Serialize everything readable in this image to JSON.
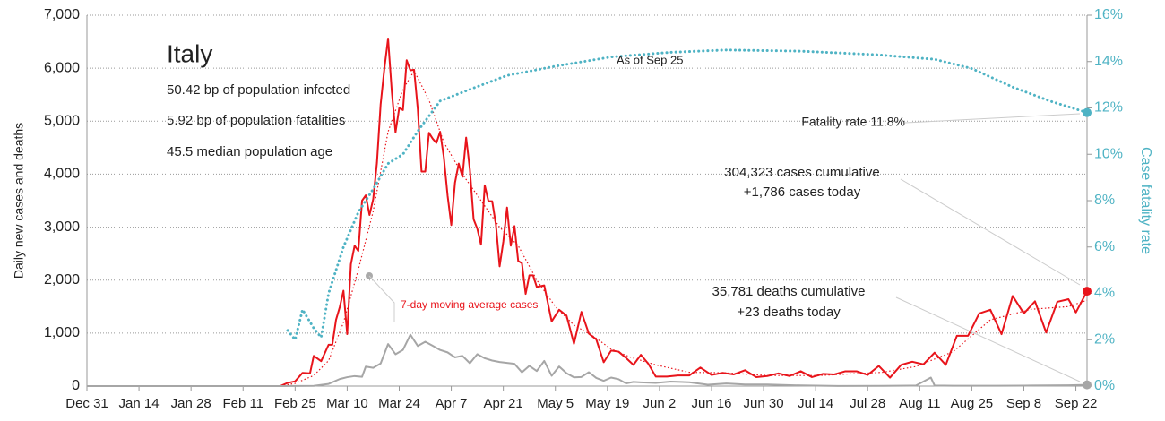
{
  "chart_data": {
    "type": "line",
    "title": "Italy",
    "subtitle_lines": [
      "50.42 bp of population infected",
      "5.92 bp of population fatalities",
      "45.5 median population age"
    ],
    "ylabel": "Daily new cases and deaths",
    "y2label": "Case fatality rate",
    "annotations": {
      "as_of": "As of Sep 25",
      "fatality": "Fatality rate 11.8%",
      "cases_cum": "304,323 cases cumulative",
      "cases_today": "+1,786 cases today",
      "deaths_cum": "35,781 deaths cumulative",
      "deaths_today": "+23 deaths today"
    },
    "xlim": [
      "Dec 31",
      "Sep 25"
    ],
    "xticks": [
      "Dec 31",
      "Jan 14",
      "Jan 28",
      "Feb 11",
      "Feb 25",
      "Mar 10",
      "Mar 24",
      "Apr 7",
      "Apr 21",
      "May 5",
      "May 19",
      "Jun 2",
      "Jun 16",
      "Jun 30",
      "Jul 14",
      "Jul 28",
      "Aug 11",
      "Aug 25",
      "Sep 8",
      "Sep 22"
    ],
    "ylim": [
      0,
      7000
    ],
    "yticks": [
      0,
      {
        "value": 1000,
        "label": "1,000"
      },
      {
        "value": 2000,
        "label": "2,000"
      },
      {
        "value": 3000,
        "label": "3,000"
      },
      {
        "value": 4000,
        "label": "4,000"
      },
      {
        "value": 5000,
        "label": "5,000"
      },
      {
        "value": 6000,
        "label": "6,000"
      },
      {
        "value": 7000,
        "label": "7,000"
      }
    ],
    "y2lim": [
      0,
      16
    ],
    "y2ticks": [
      {
        "value": 0,
        "label": "0%"
      },
      {
        "value": 2,
        "label": "2%"
      },
      {
        "value": 4,
        "label": "4%"
      },
      {
        "value": 6,
        "label": "6%"
      },
      {
        "value": 8,
        "label": "8%"
      },
      {
        "value": 10,
        "label": "10%"
      },
      {
        "value": 12,
        "label": "12%"
      },
      {
        "value": 14,
        "label": "14%"
      },
      {
        "value": 16,
        "label": "16%"
      }
    ],
    "grid": true,
    "series": [
      {
        "color": "#e8141b",
        "style": "solid",
        "endpoint": true,
        "x": [
          "Dec 31",
          "Feb 21",
          "Feb 23",
          "Feb 25",
          "Feb 27",
          "Feb 29",
          "Mar 1",
          "Mar 3",
          "Mar 5",
          "Mar 6",
          "Mar 7",
          "Mar 8",
          "Mar 9",
          "Mar 10",
          "Mar 11",
          "Mar 12",
          "Mar 13",
          "Mar 14",
          "Mar 15",
          "Mar 16",
          "Mar 17",
          "Mar 18",
          "Mar 19",
          "Mar 20",
          "Mar 21",
          "Mar 22",
          "Mar 23",
          "Mar 24",
          "Mar 25",
          "Mar 26",
          "Mar 27",
          "Mar 28",
          "Mar 29",
          "Mar 30",
          "Mar 31",
          "Apr 1",
          "Apr 2",
          "Apr 3",
          "Apr 4",
          "Apr 5",
          "Apr 6",
          "Apr 7",
          "Apr 8",
          "Apr 9",
          "Apr 10",
          "Apr 11",
          "Apr 12",
          "Apr 13",
          "Apr 14",
          "Apr 15",
          "Apr 16",
          "Apr 17",
          "Apr 18",
          "Apr 19",
          "Apr 20",
          "Apr 21",
          "Apr 22",
          "Apr 23",
          "Apr 24",
          "Apr 25",
          "Apr 26",
          "Apr 27",
          "Apr 28",
          "Apr 29",
          "Apr 30",
          "May 2",
          "May 4",
          "May 6",
          "May 8",
          "May 10",
          "May 12",
          "May 14",
          "May 16",
          "May 18",
          "May 20",
          "May 22",
          "May 24",
          "May 26",
          "May 28",
          "May 30",
          "Jun 1",
          "Jun 4",
          "Jun 7",
          "Jun 10",
          "Jun 13",
          "Jun 16",
          "Jun 19",
          "Jun 22",
          "Jun 25",
          "Jun 28",
          "Jul 1",
          "Jul 4",
          "Jul 7",
          "Jul 10",
          "Jul 13",
          "Jul 16",
          "Jul 19",
          "Jul 22",
          "Jul 25",
          "Jul 28",
          "Jul 31",
          "Aug 3",
          "Aug 6",
          "Aug 9",
          "Aug 12",
          "Aug 15",
          "Aug 18",
          "Aug 21",
          "Aug 24",
          "Aug 27",
          "Aug 30",
          "Sep 2",
          "Sep 5",
          "Sep 8",
          "Sep 11",
          "Sep 14",
          "Sep 17",
          "Sep 20",
          "Sep 22",
          "Sep 25"
        ],
        "values": [
          0,
          0,
          60,
          90,
          250,
          240,
          570,
          470,
          780,
          780,
          1250,
          1490,
          1800,
          980,
          2300,
          2650,
          2550,
          3500,
          3600,
          3230,
          3530,
          4210,
          5320,
          5990,
          6560,
          5560,
          4790,
          5250,
          5210,
          6150,
          5960,
          5970,
          5220,
          4050,
          4050,
          4780,
          4670,
          4590,
          4800,
          4320,
          3600,
          3040,
          3840,
          4200,
          3950,
          4690,
          4090,
          3150,
          2970,
          2670,
          3790,
          3490,
          3490,
          3050,
          2260,
          2730,
          3370,
          2650,
          3020,
          2360,
          2320,
          1740,
          2090,
          2090,
          1870,
          1900,
          1220,
          1440,
          1330,
          800,
          1400,
          990,
          880,
          450,
          670,
          650,
          530,
          400,
          590,
          420,
          180,
          180,
          200,
          200,
          350,
          210,
          250,
          220,
          300,
          170,
          190,
          240,
          190,
          280,
          170,
          230,
          220,
          280,
          280,
          210,
          380,
          160,
          400,
          460,
          410,
          630,
          400,
          950,
          950,
          1370,
          1440,
          980,
          1700,
          1370,
          1600,
          1010,
          1590,
          1640,
          1390,
          1790
        ]
      },
      {
        "name": "7-day moving average cases",
        "color": "#e8141b",
        "style": "dotted",
        "endpoint": false,
        "x": [
          "Feb 21",
          "Feb 25",
          "Mar 1",
          "Mar 5",
          "Mar 9",
          "Mar 13",
          "Mar 17",
          "Mar 21",
          "Mar 25",
          "Mar 28",
          "Apr 1",
          "Apr 5",
          "Apr 10",
          "Apr 15",
          "Apr 20",
          "Apr 25",
          "Apr 30",
          "May 5",
          "May 10",
          "May 15",
          "May 20",
          "May 25",
          "Jun 1",
          "Jun 10",
          "Jun 20",
          "Jul 1",
          "Jul 15",
          "Aug 1",
          "Aug 10",
          "Aug 20",
          "Aug 30",
          "Sep 10",
          "Sep 20",
          "Sep 25"
        ],
        "values": [
          0,
          50,
          200,
          480,
          1200,
          2200,
          3300,
          4800,
          5600,
          5950,
          5400,
          4600,
          4000,
          3500,
          3000,
          2650,
          2000,
          1500,
          1150,
          950,
          700,
          550,
          400,
          260,
          250,
          200,
          200,
          260,
          370,
          650,
          1250,
          1450,
          1500,
          1620
        ]
      },
      {
        "color": "#a6a6a6",
        "style": "solid",
        "endpoint": true,
        "x": [
          "Dec 31",
          "Feb 21",
          "Mar 1",
          "Mar 5",
          "Mar 8",
          "Mar 10",
          "Mar 12",
          "Mar 14",
          "Mar 15",
          "Mar 17",
          "Mar 19",
          "Mar 21",
          "Mar 23",
          "Mar 25",
          "Mar 27",
          "Mar 29",
          "Mar 31",
          "Apr 2",
          "Apr 4",
          "Apr 6",
          "Apr 8",
          "Apr 10",
          "Apr 12",
          "Apr 14",
          "Apr 16",
          "Apr 18",
          "Apr 20",
          "Apr 22",
          "Apr 24",
          "Apr 26",
          "Apr 28",
          "Apr 30",
          "May 2",
          "May 4",
          "May 6",
          "May 8",
          "May 10",
          "May 12",
          "May 14",
          "May 16",
          "May 18",
          "May 20",
          "May 22",
          "May 24",
          "May 26",
          "May 28",
          "Jun 1",
          "Jun 5",
          "Jun 10",
          "Jun 15",
          "Jun 20",
          "Jun 25",
          "Jul 1",
          "Jul 10",
          "Jul 20",
          "Aug 1",
          "Aug 10",
          "Aug 14",
          "Aug 15",
          "Aug 20",
          "Sep 1",
          "Sep 10",
          "Sep 20",
          "Sep 25"
        ],
        "values": [
          0,
          0,
          5,
          41,
          133,
          168,
          189,
          175,
          368,
          345,
          427,
          793,
          601,
          683,
          969,
          756,
          837,
          760,
          681,
          636,
          542,
          570,
          431,
          602,
          525,
          482,
          454,
          437,
          420,
          260,
          382,
          285,
          474,
          195,
          369,
          243,
          165,
          172,
          262,
          153,
          99,
          161,
          130,
          50,
          78,
          70,
          60,
          85,
          71,
          26,
          49,
          30,
          30,
          12,
          3,
          5,
          10,
          160,
          10,
          7,
          6,
          10,
          14,
          23
        ]
      },
      {
        "color": "#4fb3c4",
        "style": "dotted-thick",
        "axis": "y2",
        "endpoint": true,
        "x": [
          "Feb 23",
          "Feb 25",
          "Feb 27",
          "Mar 1",
          "Mar 3",
          "Mar 5",
          "Mar 9",
          "Mar 13",
          "Mar 17",
          "Mar 21",
          "Mar 25",
          "Mar 29",
          "Apr 4",
          "Apr 12",
          "Apr 22",
          "May 5",
          "May 20",
          "Jun 5",
          "Jun 20",
          "Jul 10",
          "Jul 30",
          "Aug 15",
          "Aug 25",
          "Sep 5",
          "Sep 15",
          "Sep 25"
        ],
        "values": [
          2.4,
          2.0,
          3.3,
          2.5,
          2.1,
          4.0,
          6.0,
          7.5,
          8.5,
          9.6,
          10.0,
          11.0,
          12.3,
          12.8,
          13.4,
          13.8,
          14.2,
          14.4,
          14.5,
          14.45,
          14.3,
          14.1,
          13.7,
          12.9,
          12.3,
          11.8
        ]
      }
    ]
  }
}
